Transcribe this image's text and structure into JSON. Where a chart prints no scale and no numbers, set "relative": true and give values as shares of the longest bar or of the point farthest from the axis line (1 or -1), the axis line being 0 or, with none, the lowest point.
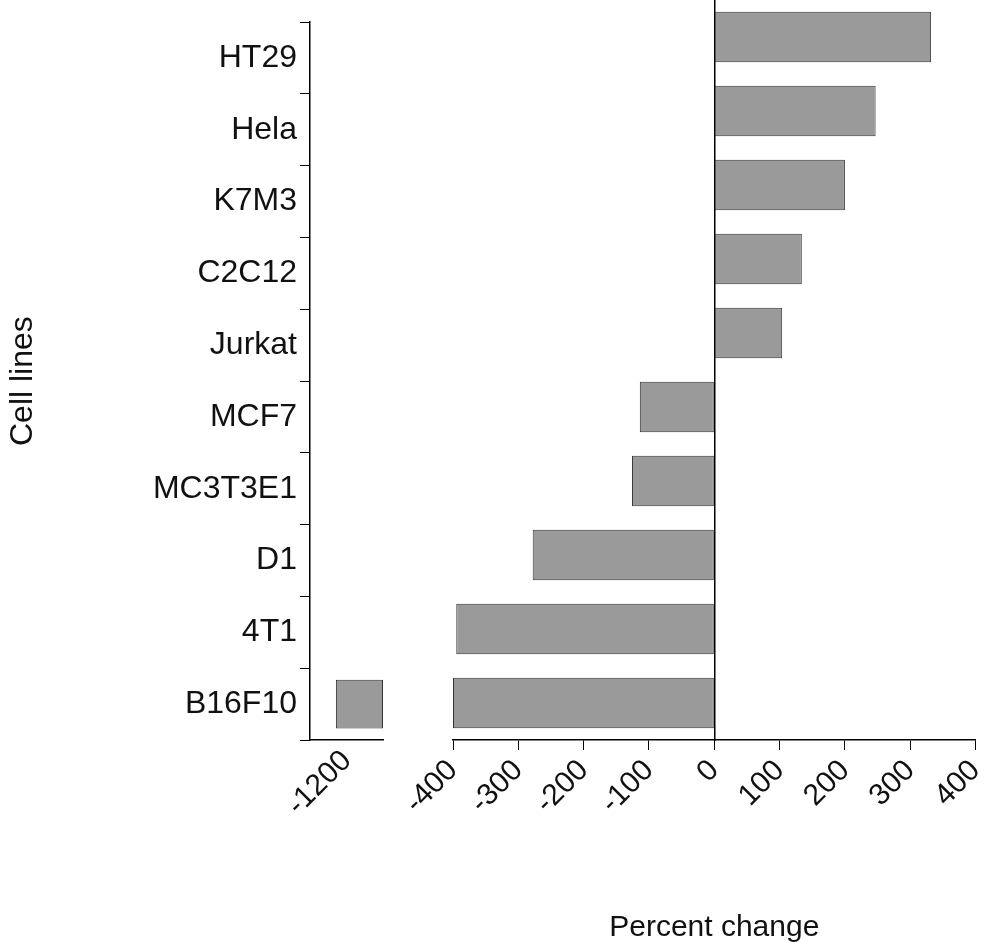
{
  "chart_data": [
    {
      "type": "bar",
      "orientation": "horizontal",
      "relative": true,
      "ylabel": "Cell lines",
      "categories": [
        "HT29",
        "Hela",
        "K7M3",
        "C2C12",
        "Jurkat",
        "MCF7",
        "MC3T3E1",
        "D1",
        "4T1",
        "B16F10"
      ],
      "values": [
        null,
        null,
        null,
        null,
        null,
        null,
        null,
        null,
        null,
        -1
      ],
      "color": "#9a9a9a",
      "annotations": [
        "-1200"
      ]
    },
    {
      "type": "bar",
      "orientation": "horizontal",
      "xlabel": "Percent change",
      "categories": [
        null,
        null,
        null,
        null,
        null,
        null,
        null,
        null,
        null,
        null
      ],
      "values": [
        332,
        247,
        200,
        134,
        104,
        -114,
        -126,
        -278,
        -395,
        -400
      ],
      "color": "#9a9a9a",
      "xlim": [
        -400,
        400
      ],
      "xticks": [
        -400,
        -300,
        -200,
        -100,
        0,
        100,
        200,
        300,
        400
      ],
      "tick_labels": "x"
    }
  ]
}
